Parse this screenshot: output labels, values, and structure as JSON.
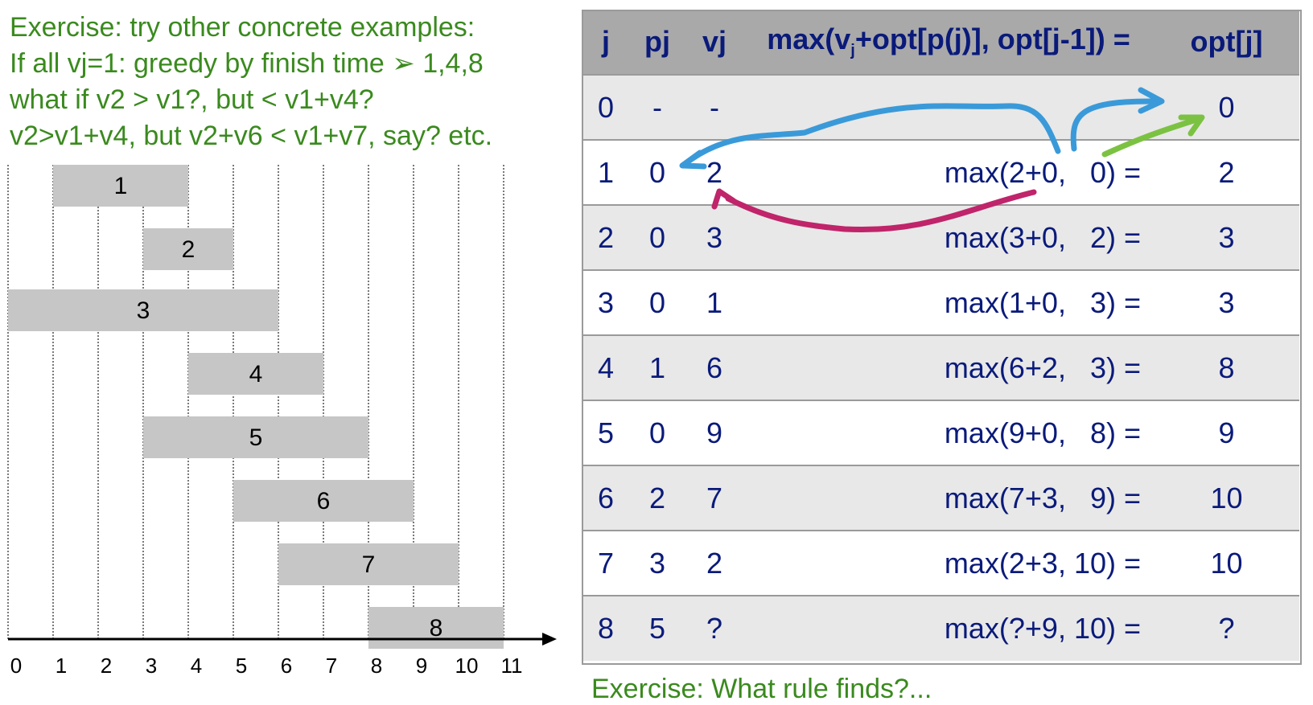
{
  "exercise": {
    "lines": [
      "Exercise: try other concrete examples:",
      "If all vj=1: greedy by finish time ➢ 1,4,8",
      "what if v2 > v1?, but < v1+v4?",
      "v2>v1+v4, but v2+v6 < v1+v7, say? etc."
    ]
  },
  "timeline": {
    "ticks": [
      "0",
      "1",
      "2",
      "3",
      "4",
      "5",
      "6",
      "7",
      "8",
      "9",
      "10",
      "11"
    ],
    "intervals": [
      {
        "label": "1",
        "start": 1,
        "end": 4
      },
      {
        "label": "2",
        "start": 3,
        "end": 5
      },
      {
        "label": "3",
        "start": 0,
        "end": 6
      },
      {
        "label": "4",
        "start": 4,
        "end": 7
      },
      {
        "label": "5",
        "start": 3,
        "end": 8
      },
      {
        "label": "6",
        "start": 5,
        "end": 9
      },
      {
        "label": "7",
        "start": 6,
        "end": 10
      },
      {
        "label": "8",
        "start": 8,
        "end": 11
      }
    ]
  },
  "table": {
    "headers": {
      "j": "j",
      "pj": "pj",
      "vj": "vj",
      "max_pre": "max(v",
      "max_sub": "j",
      "max_post": "+opt[p(j)], opt[j-1]) =",
      "opt": "opt[j]"
    },
    "rows": [
      {
        "j": "0",
        "pj": "-",
        "vj": "-",
        "max": "",
        "opt": "0"
      },
      {
        "j": "1",
        "pj": "0",
        "vj": "2",
        "max": "max(2+0,   0) =",
        "opt": "2"
      },
      {
        "j": "2",
        "pj": "0",
        "vj": "3",
        "max": "max(3+0,   2) =",
        "opt": "3"
      },
      {
        "j": "3",
        "pj": "0",
        "vj": "1",
        "max": "max(1+0,   3) =",
        "opt": "3"
      },
      {
        "j": "4",
        "pj": "1",
        "vj": "6",
        "max": "max(6+2,   3) =",
        "opt": "8"
      },
      {
        "j": "5",
        "pj": "0",
        "vj": "9",
        "max": "max(9+0,   8) =",
        "opt": "9"
      },
      {
        "j": "6",
        "pj": "2",
        "vj": "7",
        "max": "max(7+3,   9) =",
        "opt": "10"
      },
      {
        "j": "7",
        "pj": "3",
        "vj": "2",
        "max": "max(2+3, 10) =",
        "opt": "10"
      },
      {
        "j": "8",
        "pj": "5",
        "vj": "?",
        "max": "max(?+9, 10) =",
        "opt": "?"
      }
    ]
  },
  "annotations": {
    "blue": "#3a9ad9",
    "green": "#7cc242",
    "magenta": "#c0246a"
  },
  "bottom_text": "Exercise: What rule finds?..."
}
